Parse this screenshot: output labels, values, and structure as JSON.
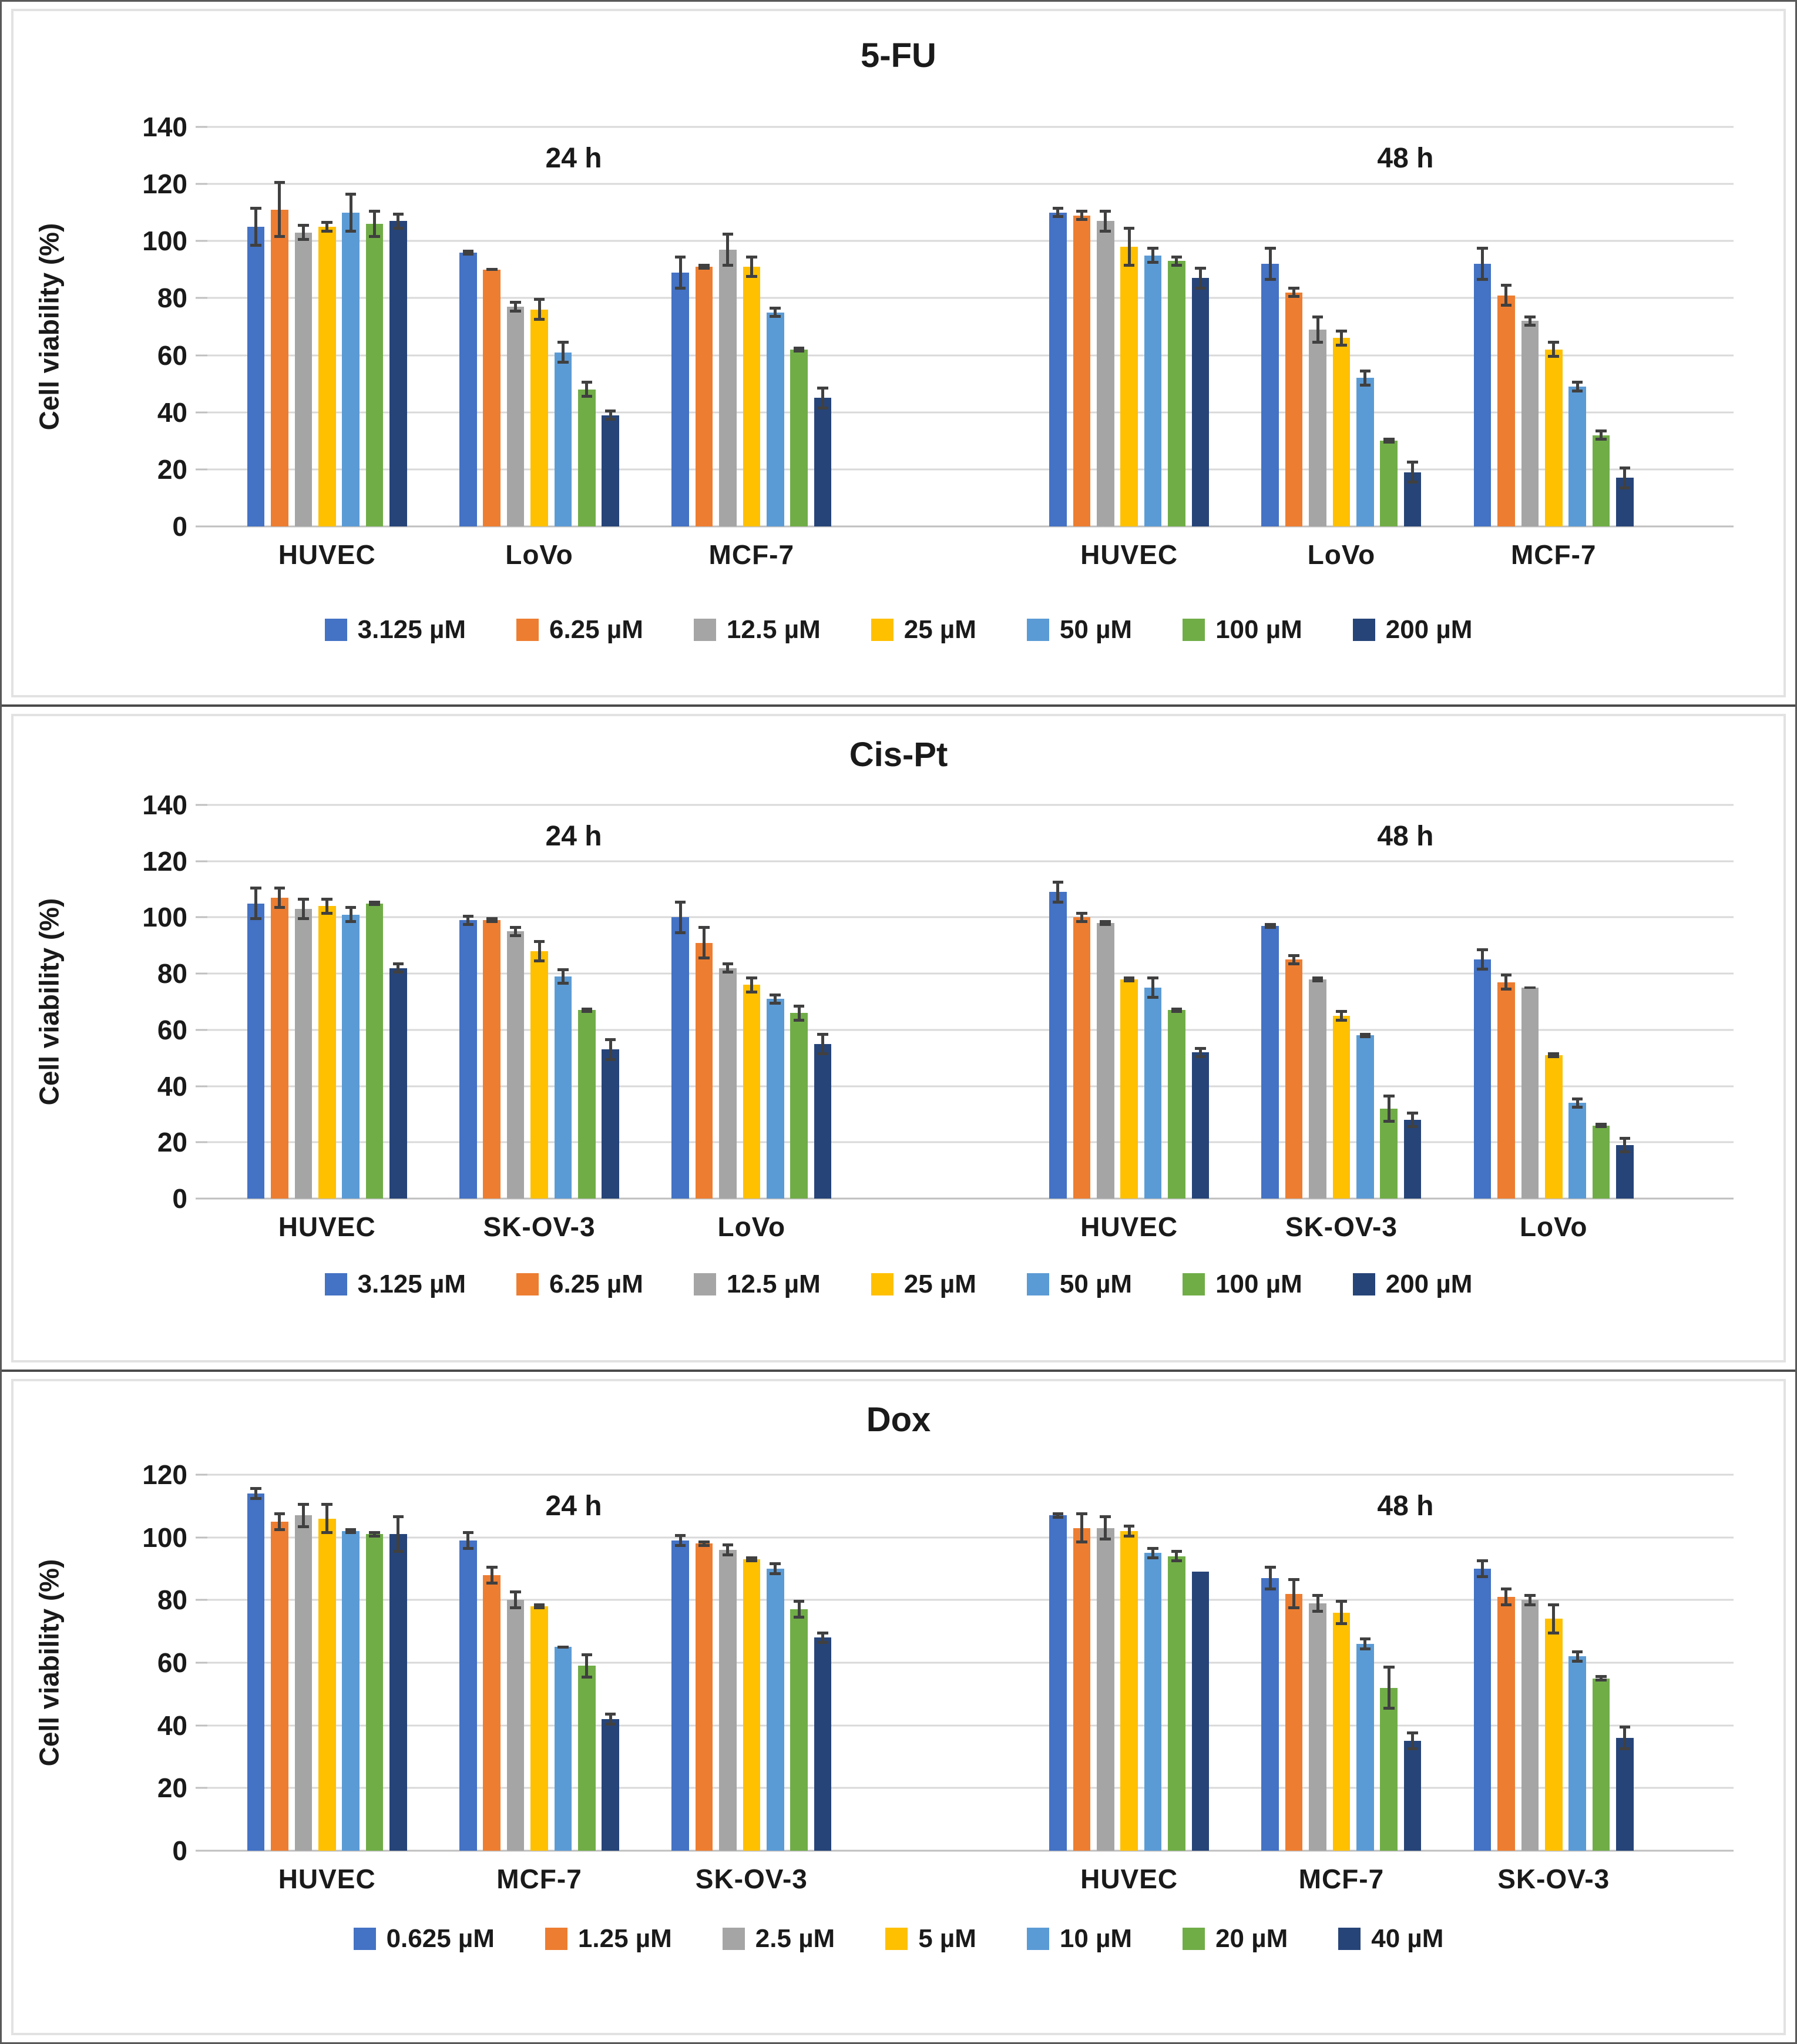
{
  "figure": {
    "ylabel": "Cell viability (%)"
  },
  "palette": [
    "#4472C4",
    "#ED7D31",
    "#A5A5A5",
    "#FFC000",
    "#5B9BD5",
    "#70AD47",
    "#264478"
  ],
  "colors": {
    "gridline": "#D9D9D9",
    "axis_line": "#BFBFBF",
    "error_bar": "#404040",
    "text": "#1A1A1A",
    "chart_frame": "#E2E2E2",
    "outer_border": "#595959"
  },
  "chart_data": [
    {
      "type": "bar",
      "title": "5-FU",
      "ylabel": "Cell viability (%)",
      "ymax": 140,
      "ytick_step": 20,
      "yticks": [
        140,
        120,
        100,
        80,
        60,
        40,
        20,
        0
      ],
      "time_labels": [
        "24 h",
        "48 h"
      ],
      "legend": [
        "3.125 µM",
        "6.25 µM",
        "12.5 µM",
        "25 µM",
        "50 µM",
        "100 µM",
        "200 µM"
      ],
      "groups": [
        {
          "time": "24 h",
          "category": "HUVEC",
          "values": [
            105,
            111,
            103,
            105,
            110,
            106,
            107
          ],
          "errors": [
            7,
            10,
            3,
            2,
            7,
            5,
            3
          ]
        },
        {
          "time": "24 h",
          "category": "LoVo",
          "values": [
            96,
            90,
            77,
            76,
            61,
            48,
            39
          ],
          "errors": [
            1,
            0.5,
            2,
            4,
            4,
            3,
            2
          ]
        },
        {
          "time": "24 h",
          "category": "MCF-7",
          "values": [
            89,
            91,
            97,
            91,
            75,
            62,
            45
          ],
          "errors": [
            6,
            1,
            6,
            4,
            2,
            1,
            4
          ]
        },
        {
          "time": "48 h",
          "category": "HUVEC",
          "values": [
            110,
            109,
            107,
            98,
            95,
            93,
            87
          ],
          "errors": [
            2,
            2,
            4,
            7,
            3,
            2,
            4
          ]
        },
        {
          "time": "48 h",
          "category": "LoVo",
          "values": [
            92,
            82,
            69,
            66,
            52,
            30,
            19
          ],
          "errors": [
            6,
            2,
            5,
            3,
            3,
            1,
            4
          ]
        },
        {
          "time": "48 h",
          "category": "MCF-7",
          "values": [
            92,
            81,
            72,
            62,
            49,
            32,
            17
          ],
          "errors": [
            6,
            4,
            2,
            3,
            2,
            2,
            4
          ]
        }
      ]
    },
    {
      "type": "bar",
      "title": "Cis-Pt",
      "ylabel": "Cell viability (%)",
      "ymax": 140,
      "ytick_step": 20,
      "yticks": [
        140,
        120,
        100,
        80,
        60,
        40,
        20,
        0
      ],
      "time_labels": [
        "24 h",
        "48 h"
      ],
      "legend": [
        "3.125 µM",
        "6.25 µM",
        "12.5 µM",
        "25 µM",
        "50 µM",
        "100 µM",
        "200 µM"
      ],
      "groups": [
        {
          "time": "24 h",
          "category": "HUVEC",
          "values": [
            105,
            107,
            103,
            104,
            101,
            105,
            82
          ],
          "errors": [
            6,
            4,
            4,
            3,
            3,
            1,
            2
          ]
        },
        {
          "time": "24 h",
          "category": "SK-OV-3",
          "values": [
            99,
            99,
            95,
            88,
            79,
            67,
            53
          ],
          "errors": [
            2,
            1,
            2,
            4,
            3,
            1,
            4
          ]
        },
        {
          "time": "24 h",
          "category": "LoVo",
          "values": [
            100,
            91,
            82,
            76,
            71,
            66,
            55
          ],
          "errors": [
            6,
            6,
            2,
            3,
            2,
            3,
            4
          ]
        },
        {
          "time": "48 h",
          "category": "HUVEC",
          "values": [
            109,
            100,
            98,
            78,
            75,
            67,
            52
          ],
          "errors": [
            4,
            2,
            1,
            1,
            4,
            1,
            2
          ]
        },
        {
          "time": "48 h",
          "category": "SK-OV-3",
          "values": [
            97,
            85,
            78,
            65,
            58,
            32,
            28
          ],
          "errors": [
            1,
            2,
            1,
            2,
            1,
            5,
            3
          ]
        },
        {
          "time": "48 h",
          "category": "LoVo",
          "values": [
            85,
            77,
            75,
            51,
            34,
            26,
            19
          ],
          "errors": [
            4,
            3,
            0.5,
            1,
            2,
            1,
            3
          ]
        }
      ]
    },
    {
      "type": "bar",
      "title": "Dox",
      "ylabel": "Cell viability (%)",
      "ymax": 120,
      "ytick_step": 20,
      "yticks": [
        120,
        100,
        80,
        60,
        40,
        20,
        0
      ],
      "time_labels": [
        "24 h",
        "48 h"
      ],
      "legend": [
        "0.625 µM",
        "1.25 µM",
        "2.5 µM",
        "5 µM",
        "10 µM",
        "20 µM",
        "40 µM"
      ],
      "groups": [
        {
          "time": "24 h",
          "category": "HUVEC",
          "values": [
            114,
            105,
            107,
            106,
            102,
            101,
            101
          ],
          "errors": [
            2,
            3,
            4,
            5,
            1,
            1,
            6
          ]
        },
        {
          "time": "24 h",
          "category": "MCF-7",
          "values": [
            99,
            88,
            80,
            78,
            65,
            59,
            42
          ],
          "errors": [
            3,
            3,
            3,
            1,
            0.5,
            4,
            2
          ]
        },
        {
          "time": "24 h",
          "category": "SK-OV-3",
          "values": [
            99,
            98,
            96,
            93,
            90,
            77,
            68
          ],
          "errors": [
            2,
            1,
            2,
            1,
            2,
            3,
            2
          ]
        },
        {
          "time": "48 h",
          "category": "HUVEC",
          "values": [
            107,
            103,
            103,
            102,
            95,
            94,
            89
          ],
          "errors": [
            1,
            5,
            4,
            2,
            2,
            2,
            0
          ]
        },
        {
          "time": "48 h",
          "category": "MCF-7",
          "values": [
            87,
            82,
            79,
            76,
            66,
            52,
            35
          ],
          "errors": [
            4,
            5,
            3,
            4,
            2,
            7,
            3
          ]
        },
        {
          "time": "48 h",
          "category": "SK-OV-3",
          "values": [
            90,
            81,
            80,
            74,
            62,
            55,
            36
          ],
          "errors": [
            3,
            3,
            2,
            5,
            2,
            1,
            4
          ]
        }
      ]
    }
  ]
}
